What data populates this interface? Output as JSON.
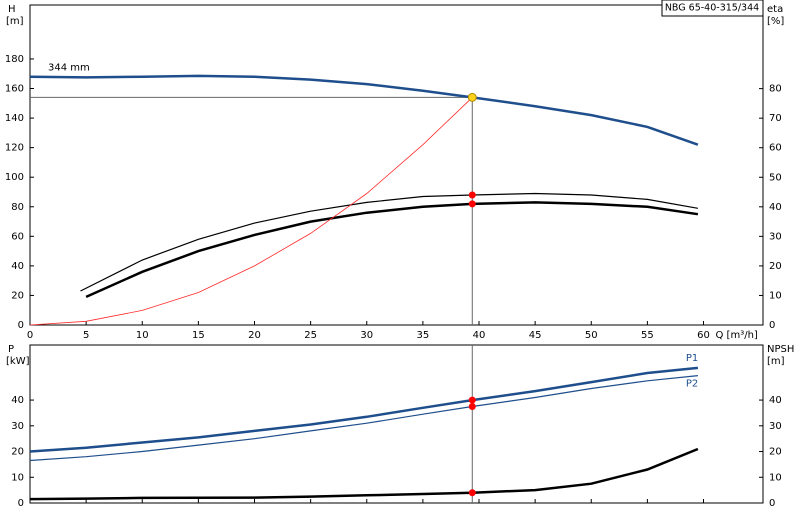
{
  "chart_data": [
    {
      "type": "line",
      "label_box": "NBG 65-40-315/344",
      "ylabel": "H",
      "yunit": "[m]",
      "y2label": "eta",
      "y2unit": "[%]",
      "xlabel": "Q [m³/h]",
      "annotation": "344 mm",
      "xlim": [
        0,
        65.3
      ],
      "xticks": [
        0,
        5,
        10,
        15,
        20,
        25,
        30,
        35,
        40,
        45,
        50,
        55,
        60
      ],
      "ylim": [
        0,
        216.5
      ],
      "yticks": [
        0,
        20,
        40,
        60,
        80,
        100,
        120,
        140,
        160,
        180
      ],
      "y2lim": [
        0,
        108.3
      ],
      "y2ticks": [
        0,
        10,
        20,
        30,
        40,
        50,
        60,
        70,
        80
      ],
      "operating_point": {
        "x": 39.4,
        "y": 154
      },
      "series": [
        {
          "color": "#1f4e8c",
          "width": 2.5,
          "x": [
            0,
            5,
            10,
            15,
            20,
            25,
            30,
            35,
            39.4,
            45,
            50,
            55,
            59.5
          ],
          "values": [
            168,
            167.5,
            168,
            168.5,
            168,
            166,
            163,
            158.5,
            154,
            148,
            142,
            134,
            122
          ]
        },
        {
          "color": "#000000",
          "width": 1.2,
          "axis": "y2",
          "marker_color": "#ff0000",
          "x": [
            4.5,
            10,
            15,
            20,
            25,
            30,
            35,
            39.4,
            45,
            50,
            55,
            59.5
          ],
          "values": [
            11.5,
            22,
            29,
            34.5,
            38.5,
            41.5,
            43.5,
            44,
            44.5,
            44,
            42.5,
            39.5
          ]
        },
        {
          "color": "#000000",
          "width": 2.5,
          "axis": "y2",
          "marker_color": "#ff0000",
          "x": [
            5,
            10,
            15,
            20,
            25,
            30,
            35,
            39.4,
            45,
            50,
            55,
            59.5
          ],
          "values": [
            9.5,
            18,
            25,
            30.5,
            35,
            38,
            40,
            41,
            41.5,
            41,
            40,
            37.5
          ]
        },
        {
          "color": "#ff2a2a",
          "width": 0.8,
          "x": [
            0,
            5,
            10,
            15,
            20,
            25,
            30,
            35,
            39.4
          ],
          "values": [
            0,
            2.5,
            9.9,
            22,
            40,
            62,
            89,
            122,
            154
          ]
        }
      ]
    },
    {
      "type": "line",
      "ylabel": "P",
      "yunit": "[kW]",
      "y2label": "NPSH",
      "y2unit": "[m]",
      "xlim": [
        0,
        65.3
      ],
      "xticks": [
        0,
        5,
        10,
        15,
        20,
        25,
        30,
        35,
        40,
        45,
        50,
        55,
        60
      ],
      "ylim": [
        0,
        61.4
      ],
      "yticks": [
        0,
        10,
        20,
        30,
        40
      ],
      "y2lim": [
        0,
        61.4
      ],
      "y2ticks": [
        0,
        10,
        20,
        30,
        40
      ],
      "operating_x": 39.4,
      "series": [
        {
          "name": "P1",
          "color": "#1f4e8c",
          "width": 2.5,
          "marker_color": "#ff0000",
          "x": [
            0,
            5,
            10,
            15,
            20,
            25,
            30,
            35,
            39.4,
            45,
            50,
            55,
            59.5
          ],
          "values": [
            20,
            21.5,
            23.5,
            25.5,
            28,
            30.5,
            33.5,
            37,
            40,
            43.5,
            47,
            50.5,
            52.5
          ]
        },
        {
          "name": "P2",
          "color": "#1f4e8c",
          "width": 1.2,
          "marker_color": "#ff0000",
          "x": [
            0,
            5,
            10,
            15,
            20,
            25,
            30,
            35,
            39.4,
            45,
            50,
            55,
            59.5
          ],
          "values": [
            16.5,
            18,
            20,
            22.5,
            25,
            28,
            31,
            34.5,
            37.5,
            41,
            44.5,
            47.5,
            49.5
          ]
        },
        {
          "color": "#000000",
          "width": 2.5,
          "axis": "y2",
          "marker_color": "#ff0000",
          "x": [
            0,
            5,
            10,
            20,
            25,
            30,
            35,
            39.4,
            45,
            50,
            55,
            59.5
          ],
          "values": [
            1.5,
            1.7,
            2,
            2.1,
            2.5,
            3,
            3.5,
            4,
            5,
            7.5,
            13,
            21
          ]
        }
      ]
    }
  ]
}
